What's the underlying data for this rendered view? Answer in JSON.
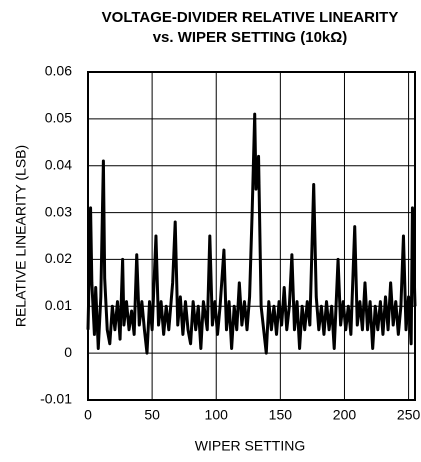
{
  "chart_data": {
    "type": "line",
    "title": "VOLTAGE-DIVIDER RELATIVE LINEARITY",
    "subtitle": "vs. WIPER SETTING (10kΩ)",
    "xlabel": "WIPER SETTING",
    "ylabel": "RELATIVE LINEARITY (LSB)",
    "xlim": [
      0,
      255
    ],
    "ylim": [
      -0.01,
      0.06
    ],
    "xticks": [
      0,
      50,
      100,
      150,
      200,
      250
    ],
    "yticks": [
      -0.01,
      0,
      0.01,
      0.02,
      0.03,
      0.04,
      0.05,
      0.06
    ],
    "grid": true,
    "series": [
      {
        "color": "#000000",
        "x": [
          0,
          2,
          3,
          5,
          6,
          8,
          10,
          12,
          13,
          15,
          17,
          19,
          21,
          23,
          25,
          27,
          28,
          30,
          32,
          34,
          36,
          38,
          40,
          42,
          44,
          46,
          48,
          50,
          53,
          55,
          57,
          59,
          61,
          63,
          66,
          68,
          70,
          72,
          74,
          76,
          78,
          80,
          82,
          84,
          86,
          88,
          90,
          93,
          95,
          97,
          99,
          101,
          103,
          106,
          108,
          110,
          112,
          114,
          116,
          118,
          120,
          122,
          124,
          126,
          128,
          130,
          131,
          133,
          135,
          137,
          139,
          141,
          143,
          145,
          147,
          149,
          151,
          153,
          155,
          157,
          159,
          161,
          163,
          165,
          167,
          169,
          171,
          173,
          176,
          178,
          180,
          182,
          184,
          186,
          188,
          190,
          192,
          195,
          197,
          199,
          201,
          203,
          205,
          208,
          210,
          212,
          214,
          216,
          218,
          220,
          222,
          224,
          226,
          228,
          230,
          232,
          234,
          236,
          238,
          240,
          242,
          244,
          246,
          248,
          250,
          252,
          253,
          255
        ],
        "values": [
          0.005,
          0.031,
          0.015,
          0.004,
          0.014,
          0.001,
          0.012,
          0.041,
          0.016,
          0.005,
          0.002,
          0.01,
          0.005,
          0.011,
          0.003,
          0.02,
          0.006,
          0.011,
          0.005,
          0.009,
          0.004,
          0.021,
          0.006,
          0.011,
          0.005,
          0.0,
          0.011,
          0.005,
          0.025,
          0.006,
          0.011,
          0.004,
          0.01,
          0.005,
          0.015,
          0.028,
          0.006,
          0.012,
          0.004,
          0.011,
          0.005,
          0.002,
          0.011,
          0.005,
          0.01,
          0.001,
          0.011,
          0.005,
          0.025,
          0.006,
          0.011,
          0.004,
          0.01,
          0.022,
          0.005,
          0.011,
          0.001,
          0.01,
          0.005,
          0.015,
          0.006,
          0.011,
          0.005,
          0.012,
          0.03,
          0.051,
          0.035,
          0.042,
          0.01,
          0.005,
          0.0,
          0.011,
          0.005,
          0.01,
          0.004,
          0.011,
          0.006,
          0.014,
          0.005,
          0.01,
          0.021,
          0.005,
          0.011,
          0.001,
          0.01,
          0.005,
          0.011,
          0.006,
          0.036,
          0.012,
          0.005,
          0.01,
          0.004,
          0.011,
          0.005,
          0.01,
          0.001,
          0.02,
          0.006,
          0.011,
          0.005,
          0.01,
          0.004,
          0.027,
          0.006,
          0.011,
          0.005,
          0.015,
          0.005,
          0.011,
          0.001,
          0.01,
          0.005,
          0.011,
          0.004,
          0.012,
          0.005,
          0.015,
          0.006,
          0.011,
          0.004,
          0.01,
          0.025,
          0.005,
          0.012,
          0.002,
          0.031,
          0.01
        ]
      }
    ]
  }
}
